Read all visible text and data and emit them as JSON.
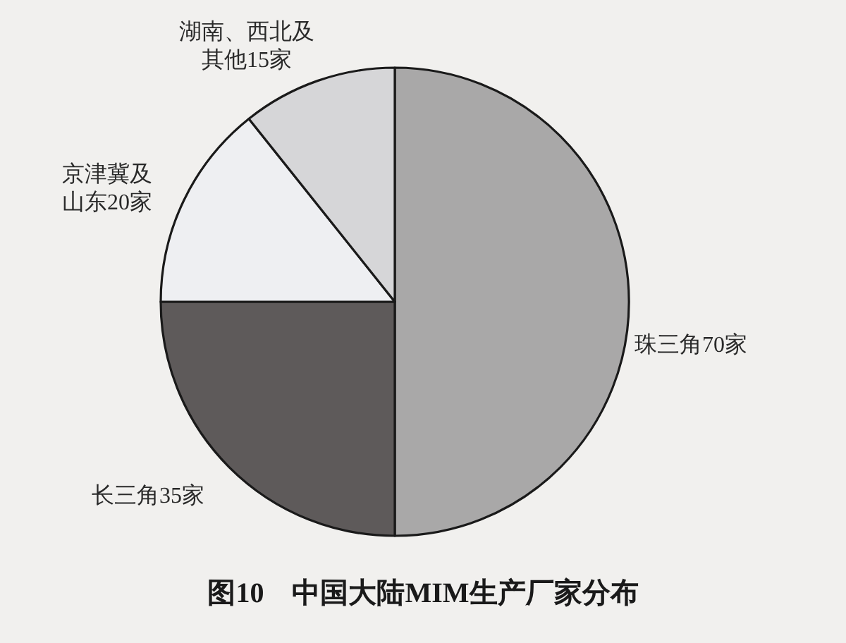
{
  "chart_data": {
    "type": "pie",
    "title": "图10　中国大陆MIM生产厂家分布",
    "categories": [
      "珠三角",
      "长三角",
      "京津冀及山东",
      "湖南、西北及其他"
    ],
    "values": [
      70,
      35,
      20,
      15
    ],
    "value_labels": [
      "70家",
      "35家",
      "20家",
      "15家"
    ],
    "colors": [
      "#a9a8a8",
      "#5e5a5a",
      "#eeeff2",
      "#d6d6d8"
    ]
  }
}
